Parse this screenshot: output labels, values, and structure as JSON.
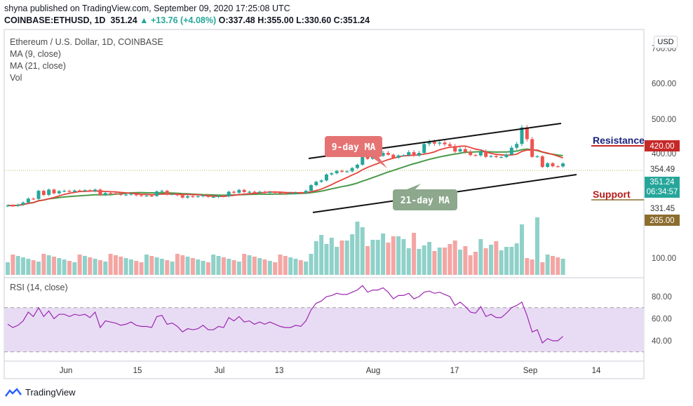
{
  "header": {
    "line1": "shyna published on TradingView.com, September 09, 2020 17:25:08 UTC",
    "symbol": "COINBASE:ETHUSD, 1D",
    "price": "351.24",
    "change": "+13.76 (+4.08%)",
    "open": "O:337.48",
    "high": "H:355.00",
    "low": "L:330.60",
    "close": "C:351.24"
  },
  "legend": {
    "title": "Ethereum / U.S. Dollar, 1D, COINBASE",
    "ma9": "MA (9, close)",
    "ma21": "MA (21, close)",
    "vol": "Vol",
    "rsi": "RSI (14, close)"
  },
  "currency_button": "USD",
  "annotations": {
    "ma9": "9-day MA",
    "ma21": "21-day MA",
    "resistance": "Resistance",
    "support": "Support"
  },
  "price_labels": {
    "resistance": "420.00",
    "dotted": "354.49",
    "last": "351.24",
    "countdown": "06:34:57",
    "low": "331.45",
    "support": "265.00"
  },
  "footer": {
    "brand": "TradingView"
  },
  "colors": {
    "up": "#26a69a",
    "down": "#ef5350",
    "ma9": "#e5413a",
    "ma21": "#4a9a4a",
    "rsi": "#9c27b0",
    "rsi_band": "#e8dcf5",
    "resistance": "#c62828",
    "support": "#8b6d2e",
    "label_ma9_bg": "#e57373",
    "label_ma21_bg": "#8da88d"
  },
  "chart_data": [
    {
      "type": "candlestick",
      "title": "Ethereum / U.S. Dollar, 1D, COINBASE",
      "x_ticks": [
        "Jun",
        "15",
        "Jul",
        "13",
        "Aug",
        "17",
        "Sep",
        "14"
      ],
      "y_ticks": [
        "700.00",
        "600.00",
        "500.00",
        "400.00",
        "100.00"
      ],
      "y_scale": "log",
      "ylim": [
        180,
        760
      ],
      "series": [
        {
          "name": "ETHUSD",
          "dates": [
            "05-24",
            "05-25",
            "05-26",
            "05-27",
            "05-28",
            "05-29",
            "05-30",
            "05-31",
            "06-01",
            "06-02",
            "06-03",
            "06-04",
            "06-05",
            "06-06",
            "06-07",
            "06-08",
            "06-09",
            "06-10",
            "06-11",
            "06-12",
            "06-13",
            "06-14",
            "06-15",
            "06-16",
            "06-17",
            "06-18",
            "06-19",
            "06-20",
            "06-21",
            "06-22",
            "06-23",
            "06-24",
            "06-25",
            "06-26",
            "06-27",
            "06-28",
            "06-29",
            "06-30",
            "07-01",
            "07-02",
            "07-03",
            "07-04",
            "07-05",
            "07-06",
            "07-07",
            "07-08",
            "07-09",
            "07-10",
            "07-11",
            "07-12",
            "07-13",
            "07-14",
            "07-15",
            "07-16",
            "07-17",
            "07-18",
            "07-19",
            "07-20",
            "07-21",
            "07-22",
            "07-23",
            "07-24",
            "07-25",
            "07-26",
            "07-27",
            "07-28",
            "07-29",
            "07-30",
            "07-31",
            "08-01",
            "08-02",
            "08-03",
            "08-04",
            "08-05",
            "08-06",
            "08-07",
            "08-08",
            "08-09",
            "08-10",
            "08-11",
            "08-12",
            "08-13",
            "08-14",
            "08-15",
            "08-16",
            "08-17",
            "08-18",
            "08-19",
            "08-20",
            "08-21",
            "08-22",
            "08-23",
            "08-24",
            "08-25",
            "08-26",
            "08-27",
            "08-28",
            "08-29",
            "08-30",
            "08-31",
            "09-01",
            "09-02",
            "09-03",
            "09-04",
            "09-05",
            "09-06",
            "09-07",
            "09-08",
            "09-09"
          ],
          "close": [
            201,
            200,
            203,
            209,
            220,
            219,
            244,
            231,
            248,
            236,
            243,
            244,
            241,
            245,
            244,
            246,
            243,
            248,
            231,
            237,
            236,
            235,
            231,
            232,
            235,
            230,
            229,
            229,
            228,
            242,
            244,
            233,
            234,
            230,
            223,
            227,
            226,
            227,
            230,
            225,
            225,
            228,
            227,
            241,
            238,
            247,
            240,
            241,
            238,
            241,
            238,
            240,
            238,
            237,
            236,
            236,
            238,
            237,
            244,
            263,
            275,
            280,
            303,
            308,
            318,
            315,
            316,
            330,
            345,
            389,
            373,
            386,
            388,
            402,
            394,
            378,
            390,
            391,
            404,
            389,
            402,
            428,
            434,
            429,
            432,
            427,
            422,
            406,
            413,
            405,
            392,
            390,
            406,
            383,
            387,
            382,
            382,
            395,
            417,
            428,
            476,
            442,
            383,
            386,
            335,
            352,
            338,
            337,
            351
          ]
        },
        {
          "name": "MA (9, close)",
          "note": "computed from closes"
        },
        {
          "name": "MA (21, close)",
          "note": "computed from closes"
        }
      ]
    },
    {
      "type": "line",
      "title": "RSI (14, close)",
      "y_ticks": [
        "80.00",
        "60.00",
        "40.00"
      ],
      "ylim": [
        20,
        95
      ],
      "bands": [
        30,
        70
      ],
      "series": [
        {
          "name": "RSI (14, close)",
          "values": [
            55,
            52,
            54,
            58,
            66,
            62,
            70,
            62,
            67,
            60,
            64,
            64,
            62,
            64,
            63,
            64,
            61,
            66,
            52,
            58,
            57,
            56,
            54,
            55,
            57,
            54,
            53,
            53,
            52,
            62,
            63,
            55,
            56,
            53,
            48,
            51,
            50,
            51,
            54,
            50,
            50,
            53,
            52,
            61,
            58,
            62,
            57,
            58,
            55,
            57,
            55,
            57,
            55,
            53,
            52,
            52,
            54,
            53,
            58,
            68,
            74,
            76,
            80,
            81,
            83,
            82,
            82,
            84,
            86,
            90,
            84,
            86,
            86,
            88,
            84,
            78,
            81,
            81,
            83,
            78,
            80,
            84,
            85,
            83,
            84,
            82,
            80,
            72,
            75,
            71,
            66,
            65,
            71,
            62,
            64,
            61,
            61,
            65,
            70,
            72,
            75,
            63,
            48,
            50,
            38,
            42,
            40,
            40,
            44
          ]
        }
      ]
    }
  ]
}
